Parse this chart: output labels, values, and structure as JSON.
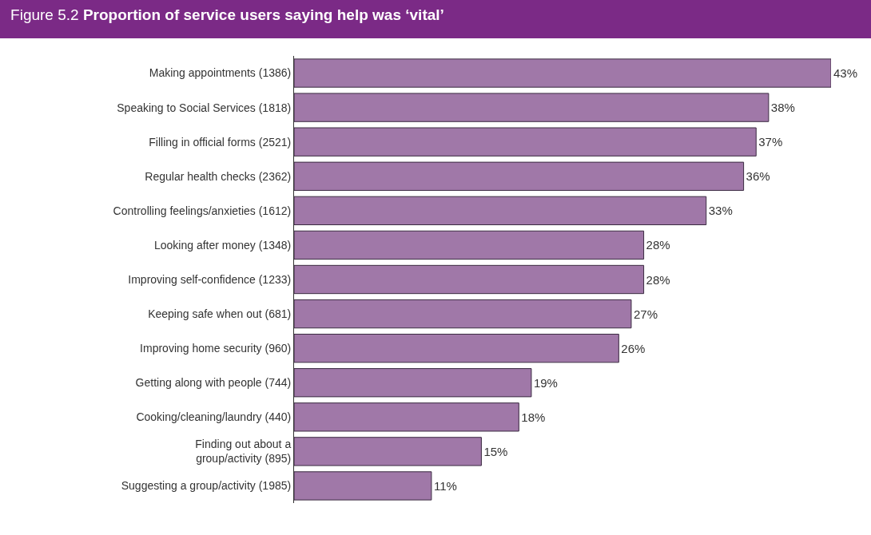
{
  "chart_data": {
    "type": "bar",
    "orientation": "horizontal",
    "title": "Figure 5.2 Proportion of service users saying help was ‘vital’",
    "categories": [
      "Making appointments (1386)",
      "Speaking to Social Services (1818)",
      "Filling in official forms (2521)",
      "Regular health checks (2362)",
      "Controlling feelings/anxieties (1612)",
      "Looking after money (1348)",
      "Improving self-confidence (1233)",
      "Keeping safe when out (681)",
      "Improving home security (960)",
      "Getting along with people (744)",
      "Cooking/cleaning/laundry (440)",
      "Finding out about a group/activity (895)",
      "Suggesting a group/activity (1985)"
    ],
    "values": [
      43,
      38,
      37,
      36,
      33,
      28,
      28,
      27,
      26,
      19,
      18,
      15,
      11
    ],
    "value_labels": [
      "43%",
      "38%",
      "37%",
      "36%",
      "33%",
      "28%",
      "28%",
      "27%",
      "26%",
      "19%",
      "18%",
      "15%",
      "11%"
    ],
    "color": "#a078a8"
  }
}
